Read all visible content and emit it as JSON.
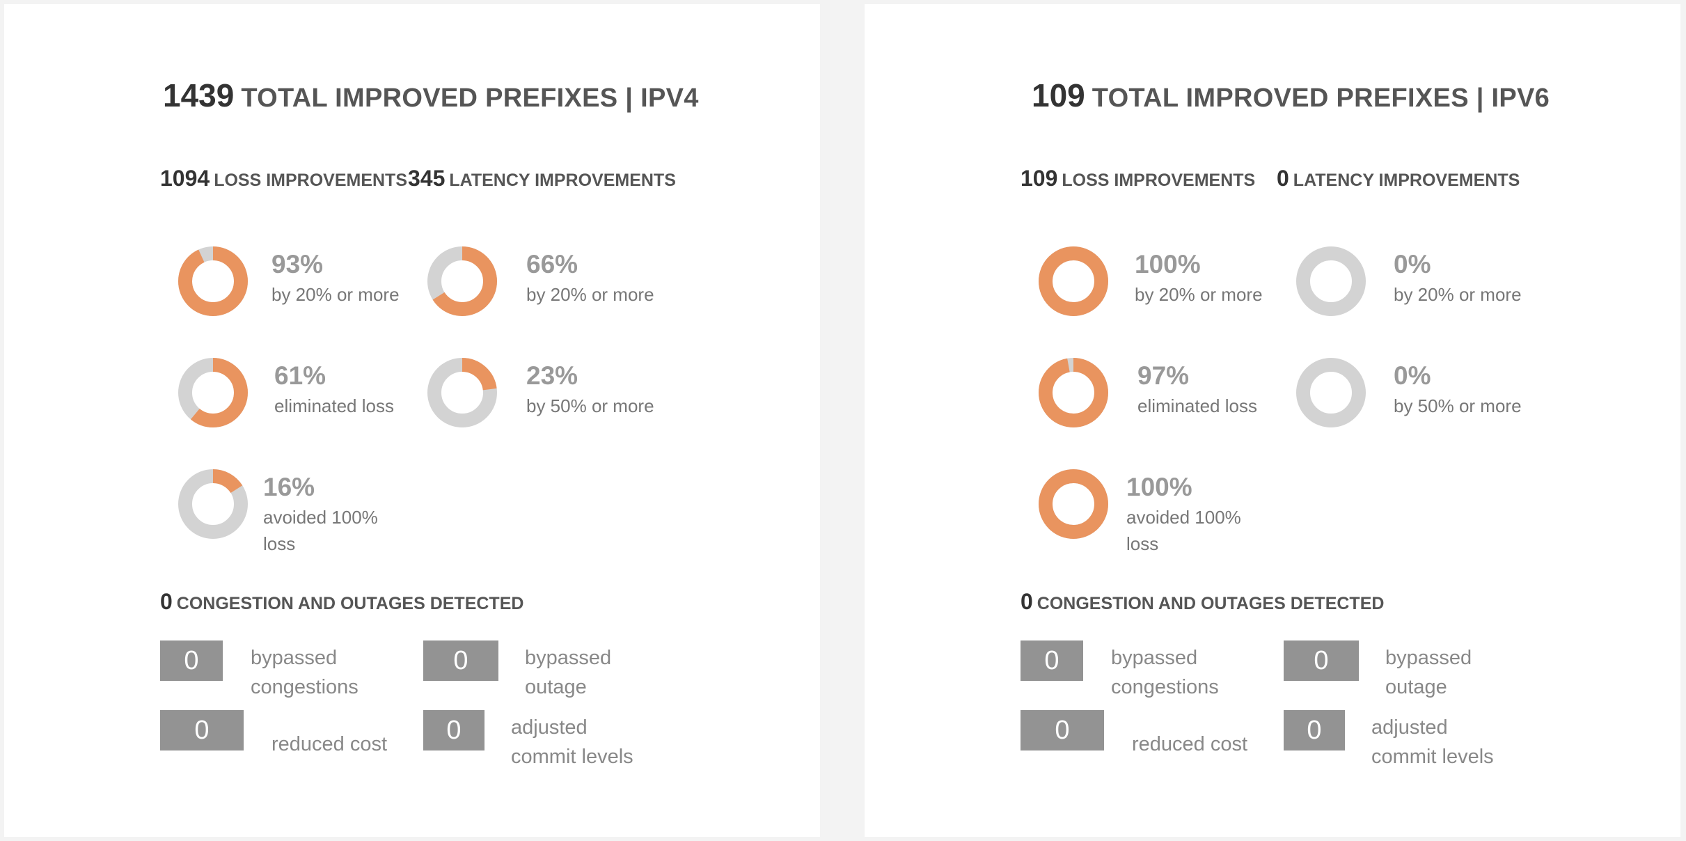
{
  "colors": {
    "accent": "#e9945f",
    "track": "#d3d3d3",
    "box": "#939393"
  },
  "panels": [
    {
      "title_num": "1439",
      "title_label": "TOTAL IMPROVED PREFIXES | IPV4",
      "loss_num": "1094",
      "loss_label": "LOSS IMPROVEMENTS",
      "latency_num": "345",
      "latency_label": "LATENCY IMPROVEMENTS",
      "stats": [
        {
          "pct_text": "93%",
          "value": 93,
          "desc": "by 20% or more"
        },
        {
          "pct_text": "66%",
          "value": 66,
          "desc": "by 20% or more"
        },
        {
          "pct_text": "61%",
          "value": 61,
          "desc": "eliminated loss"
        },
        {
          "pct_text": "23%",
          "value": 23,
          "desc": "by 50% or more"
        },
        {
          "pct_text": "16%",
          "value": 16,
          "desc": "avoided 100% loss"
        }
      ],
      "congestion_num": "0",
      "congestion_label": "CONGESTION AND OUTAGES DETECTED",
      "counters": [
        {
          "value": "0",
          "label": "bypassed congestions"
        },
        {
          "value": "0",
          "label": "bypassed outage"
        },
        {
          "value": "0",
          "label": "reduced cost"
        },
        {
          "value": "0",
          "label": "adjusted commit levels"
        }
      ]
    },
    {
      "title_num": "109",
      "title_label": "TOTAL IMPROVED PREFIXES | IPV6",
      "loss_num": "109",
      "loss_label": "LOSS IMPROVEMENTS",
      "latency_num": "0",
      "latency_label": "LATENCY IMPROVEMENTS",
      "stats": [
        {
          "pct_text": "100%",
          "value": 100,
          "desc": "by 20% or more"
        },
        {
          "pct_text": "0%",
          "value": 0,
          "desc": "by 20% or more"
        },
        {
          "pct_text": "97%",
          "value": 97,
          "desc": "eliminated loss"
        },
        {
          "pct_text": "0%",
          "value": 0,
          "desc": "by 50% or more"
        },
        {
          "pct_text": "100%",
          "value": 100,
          "desc": "avoided 100% loss"
        }
      ],
      "congestion_num": "0",
      "congestion_label": "CONGESTION AND OUTAGES DETECTED",
      "counters": [
        {
          "value": "0",
          "label": "bypassed congestions"
        },
        {
          "value": "0",
          "label": "bypassed outage"
        },
        {
          "value": "0",
          "label": "reduced cost"
        },
        {
          "value": "0",
          "label": "adjusted commit levels"
        }
      ]
    }
  ]
}
